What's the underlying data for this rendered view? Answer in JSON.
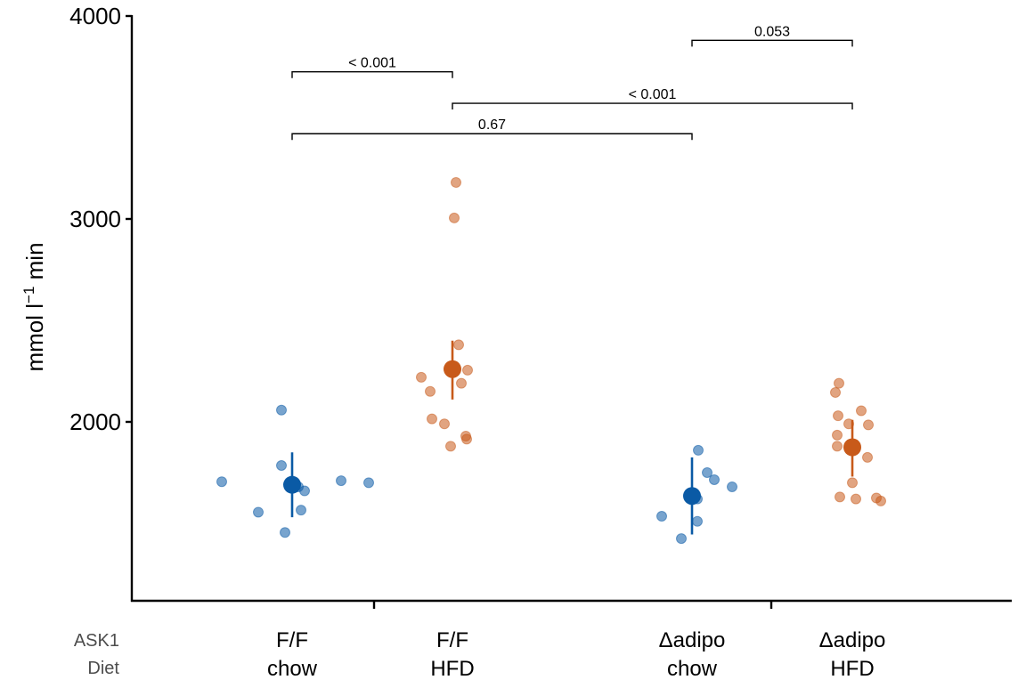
{
  "chart_data": {
    "type": "scatter",
    "ylabel_main": "mmol l",
    "ylabel_sup": "−1",
    "ylabel_tail": " min",
    "ylim": [
      1130,
      4000
    ],
    "yticks": [
      2000,
      3000,
      4000
    ],
    "row_labels": [
      "ASK1",
      "Diet"
    ],
    "groups": [
      {
        "genotype": "F/F",
        "diet": "chow",
        "color": "#0a5aa5",
        "mean": 1690,
        "low": 1530,
        "high": 1850,
        "points": [
          [
            -0.79,
            1705
          ],
          [
            -0.12,
            2058
          ],
          [
            -0.12,
            1785
          ],
          [
            -0.38,
            1555
          ],
          [
            -0.08,
            1455
          ],
          [
            0.07,
            1680
          ],
          [
            0.14,
            1660
          ],
          [
            0.55,
            1710
          ],
          [
            0.86,
            1700
          ],
          [
            0.1,
            1565
          ]
        ]
      },
      {
        "genotype": "F/F",
        "diet": "HFD",
        "color": "#c85a1a",
        "mean": 2260,
        "low": 2110,
        "high": 2400,
        "points": [
          [
            0.04,
            3180
          ],
          [
            0.02,
            3005
          ],
          [
            0.07,
            2380
          ],
          [
            -0.35,
            2220
          ],
          [
            0.1,
            2190
          ],
          [
            0.17,
            2255
          ],
          [
            -0.25,
            2150
          ],
          [
            -0.23,
            2015
          ],
          [
            -0.09,
            1990
          ],
          [
            -0.02,
            1880
          ],
          [
            0.15,
            1930
          ],
          [
            0.16,
            1915
          ]
        ]
      },
      {
        "genotype": "Δadipo",
        "diet": "chow",
        "color": "#0a5aa5",
        "mean": 1635,
        "low": 1445,
        "high": 1825,
        "points": [
          [
            0.07,
            1860
          ],
          [
            0.17,
            1750
          ],
          [
            0.25,
            1715
          ],
          [
            0.45,
            1680
          ],
          [
            0.06,
            1620
          ],
          [
            -0.34,
            1535
          ],
          [
            0.06,
            1510
          ],
          [
            -0.12,
            1425
          ]
        ]
      },
      {
        "genotype": "Δadipo",
        "diet": "HFD",
        "color": "#c85a1a",
        "mean": 1875,
        "low": 1730,
        "high": 2010,
        "points": [
          [
            -0.15,
            2190
          ],
          [
            -0.19,
            2145
          ],
          [
            0.1,
            2055
          ],
          [
            -0.16,
            2030
          ],
          [
            -0.04,
            1990
          ],
          [
            0.18,
            1985
          ],
          [
            -0.17,
            1935
          ],
          [
            -0.17,
            1880
          ],
          [
            0.17,
            1825
          ],
          [
            0.0,
            1700
          ],
          [
            -0.14,
            1630
          ],
          [
            0.04,
            1620
          ],
          [
            0.32,
            1610
          ],
          [
            0.27,
            1625
          ]
        ]
      }
    ],
    "comparisons": [
      {
        "from": 0,
        "to": 1,
        "y": 3725,
        "label": "< 0.001"
      },
      {
        "from": 2,
        "to": 3,
        "y": 3880,
        "label": "0.053"
      },
      {
        "from": 1,
        "to": 3,
        "y": 3570,
        "label": "< 0.001"
      },
      {
        "from": 0,
        "to": 2,
        "y": 3420,
        "label": "0.67"
      }
    ]
  }
}
